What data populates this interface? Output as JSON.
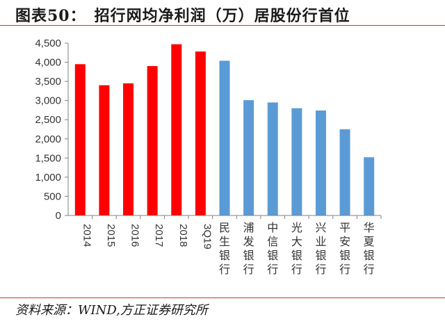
{
  "header": {
    "title": "图表50：　招行网均净利润（万）居股份行首位"
  },
  "footer": {
    "source": "资料来源：WIND,方正证券研究所"
  },
  "colors": {
    "highlight": "#ff0000",
    "peer": "#5b9bd5",
    "rule": "#c0392b",
    "axis": "#808080"
  },
  "chart_data": {
    "type": "bar",
    "categories": [
      "2014",
      "2015",
      "2016",
      "2017",
      "2018",
      "3Q19",
      "民生银行",
      "浦发银行",
      "中信银行",
      "光大银行",
      "兴业银行",
      "平安银行",
      "华夏银行"
    ],
    "values": [
      3950,
      3400,
      3450,
      3900,
      4470,
      4280,
      4040,
      3010,
      2950,
      2800,
      2740,
      2250,
      1520
    ],
    "bar_colors": [
      "#ff0000",
      "#ff0000",
      "#ff0000",
      "#ff0000",
      "#ff0000",
      "#ff0000",
      "#5b9bd5",
      "#5b9bd5",
      "#5b9bd5",
      "#5b9bd5",
      "#5b9bd5",
      "#5b9bd5",
      "#5b9bd5"
    ],
    "yticks": [
      "0",
      "500",
      "1,000",
      "1,500",
      "2,000",
      "2,500",
      "3,000",
      "3,500",
      "4,000",
      "4,500"
    ],
    "ylim": [
      0,
      4500
    ],
    "grid": false,
    "legend": "none"
  }
}
